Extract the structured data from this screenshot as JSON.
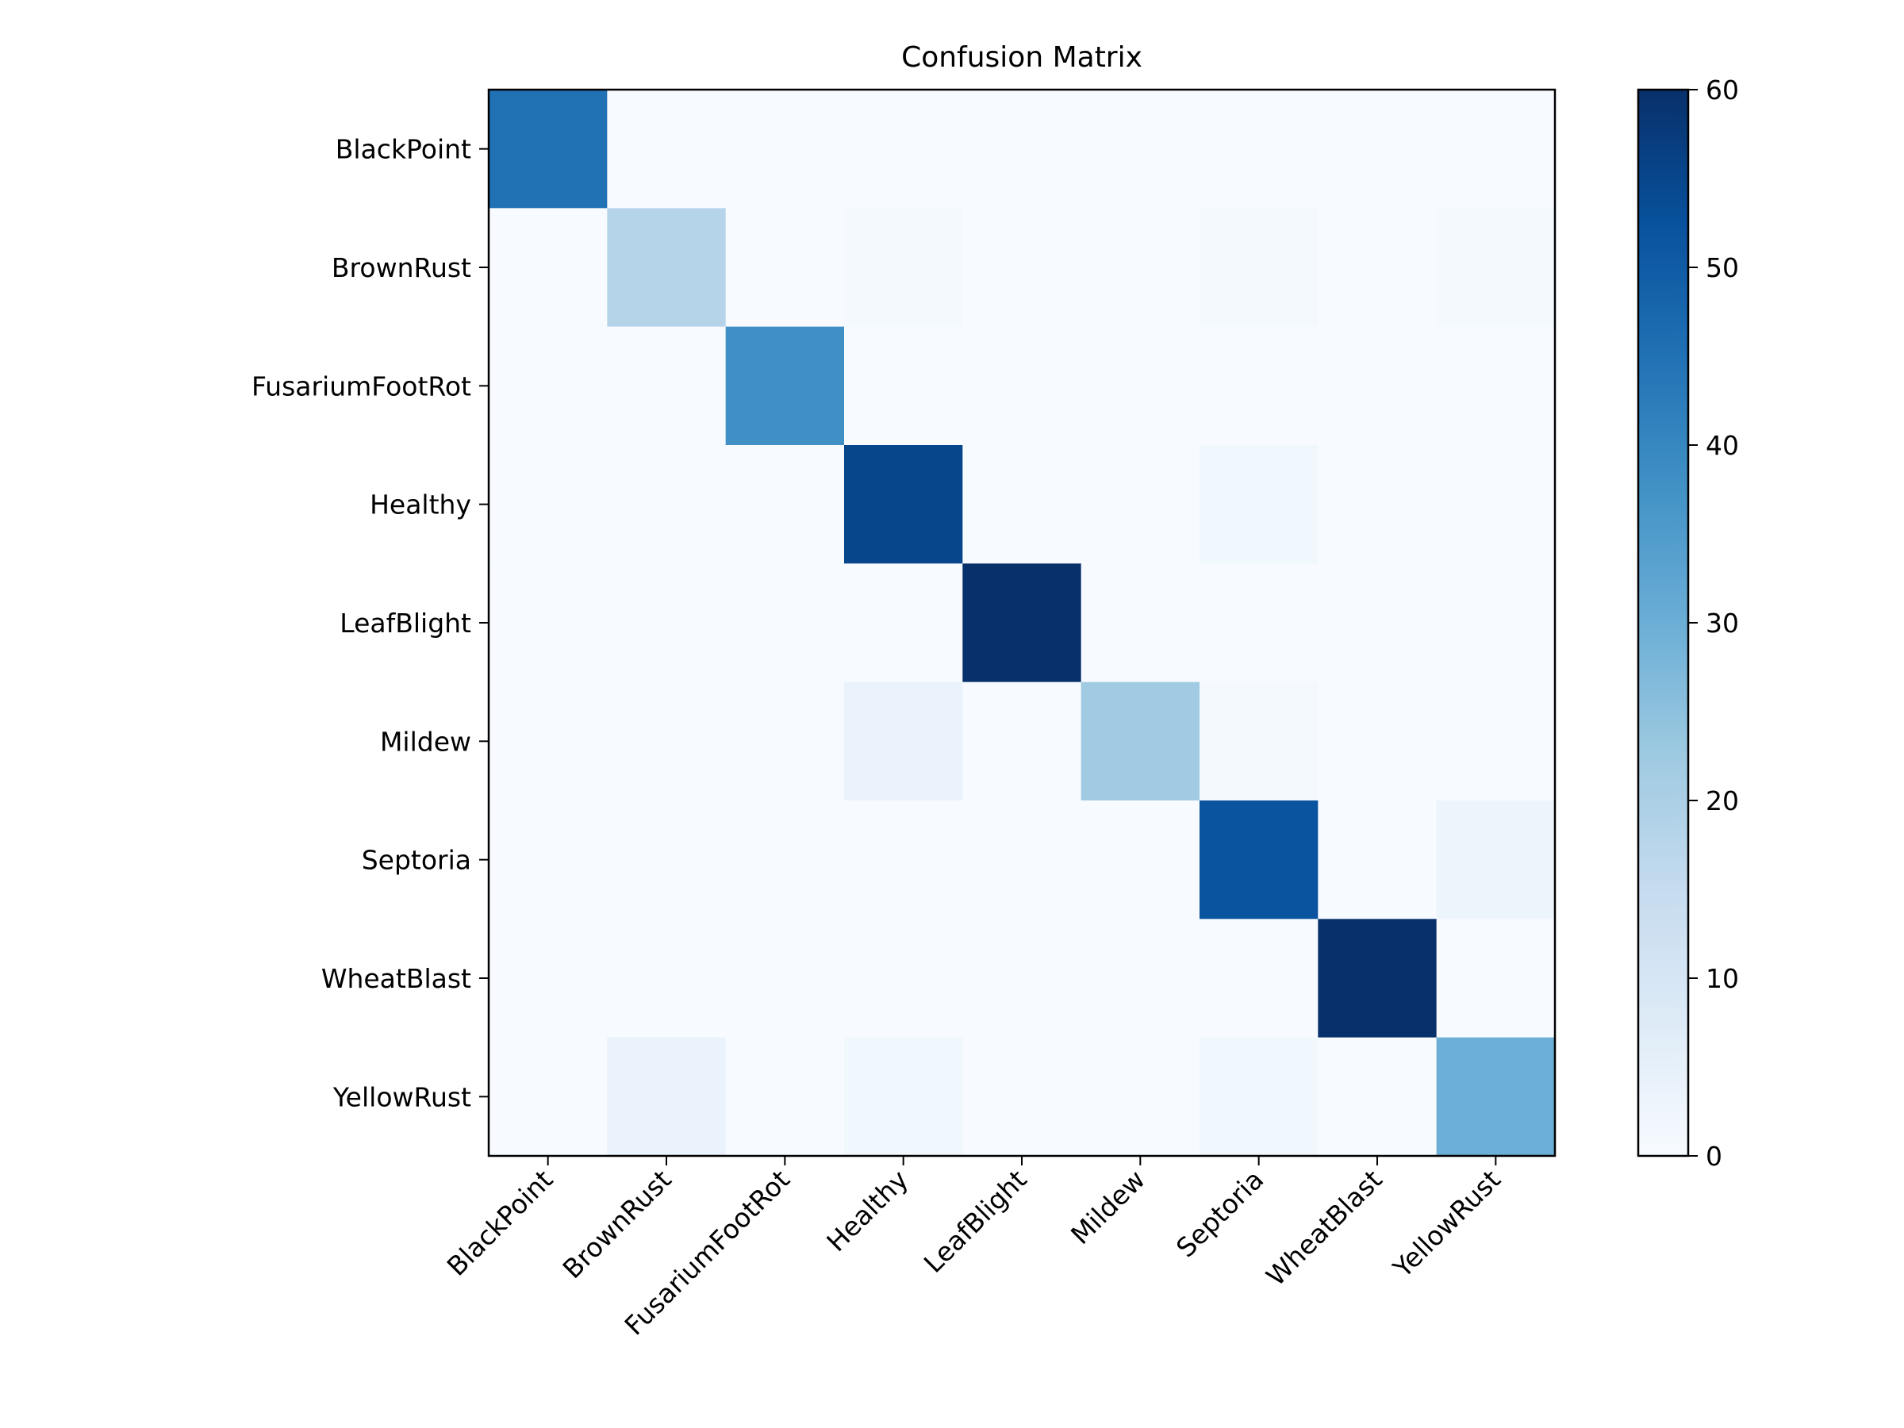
{
  "chart_data": {
    "type": "heatmap",
    "title": "Confusion Matrix",
    "xlabel": "",
    "ylabel": "",
    "x_categories": [
      "BlackPoint",
      "BrownRust",
      "FusariumFootRot",
      "Healthy",
      "LeafBlight",
      "Mildew",
      "Septoria",
      "WheatBlast",
      "YellowRust"
    ],
    "y_categories": [
      "BlackPoint",
      "BrownRust",
      "FusariumFootRot",
      "Healthy",
      "LeafBlight",
      "Mildew",
      "Septoria",
      "WheatBlast",
      "YellowRust"
    ],
    "values": [
      [
        45,
        0,
        0,
        0,
        0,
        0,
        0,
        0,
        0
      ],
      [
        0,
        18,
        0,
        1,
        0,
        0,
        1,
        0,
        1
      ],
      [
        0,
        0,
        38,
        0,
        0,
        0,
        0,
        0,
        0
      ],
      [
        0,
        0,
        0,
        55,
        0,
        0,
        2,
        0,
        0
      ],
      [
        0,
        0,
        0,
        0,
        60,
        0,
        0,
        0,
        0
      ],
      [
        0,
        0,
        0,
        4,
        0,
        22,
        1,
        0,
        0
      ],
      [
        0,
        0,
        0,
        0,
        0,
        0,
        52,
        0,
        3
      ],
      [
        0,
        0,
        0,
        0,
        0,
        0,
        0,
        60,
        0
      ],
      [
        0,
        4,
        0,
        2,
        0,
        0,
        2,
        0,
        30
      ]
    ],
    "colorbar": {
      "range": [
        0,
        60
      ],
      "ticks": [
        0,
        10,
        20,
        30,
        40,
        50,
        60
      ],
      "colormap": "Blues",
      "colors": [
        "#f7fbff",
        "#deebf7",
        "#c6dbef",
        "#9ecae1",
        "#6baed6",
        "#4292c6",
        "#2171b5",
        "#08519c",
        "#08306b"
      ]
    },
    "grid": false,
    "x_tick_rotation_deg": 45
  }
}
